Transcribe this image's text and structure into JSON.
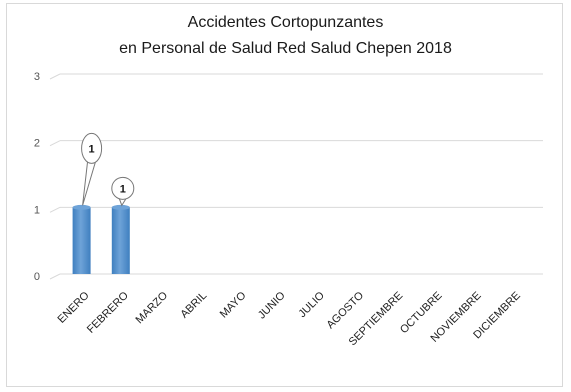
{
  "chart_data": {
    "type": "bar",
    "title": "Accidentes Cortopunzantes",
    "subtitle": "en Personal de Salud Red Salud Chepen 2018",
    "categories": [
      "ENERO",
      "FEBRERO",
      "MARZO",
      "ABRIL",
      "MAYO",
      "JUNIO",
      "JULIO",
      "AGOSTO",
      "SEPTIEMBRE",
      "OCTUBRE",
      "NOVIEMBRE",
      "DICIEMBRE"
    ],
    "values": [
      1,
      1,
      0,
      0,
      0,
      0,
      0,
      0,
      0,
      0,
      0,
      0
    ],
    "data_labels": [
      "1",
      "1",
      "",
      "",
      "",
      "",
      "",
      "",
      "",
      "",
      "",
      ""
    ],
    "ylim": [
      0,
      3
    ],
    "yticks": [
      "0",
      "1",
      "2",
      "3"
    ],
    "xlabel": "",
    "ylabel": "",
    "grid": true,
    "legend": "none",
    "bar_color": "#3f7fbf",
    "bar_color_light": "#6ea3d8",
    "grid_color": "#d9d9d9"
  }
}
